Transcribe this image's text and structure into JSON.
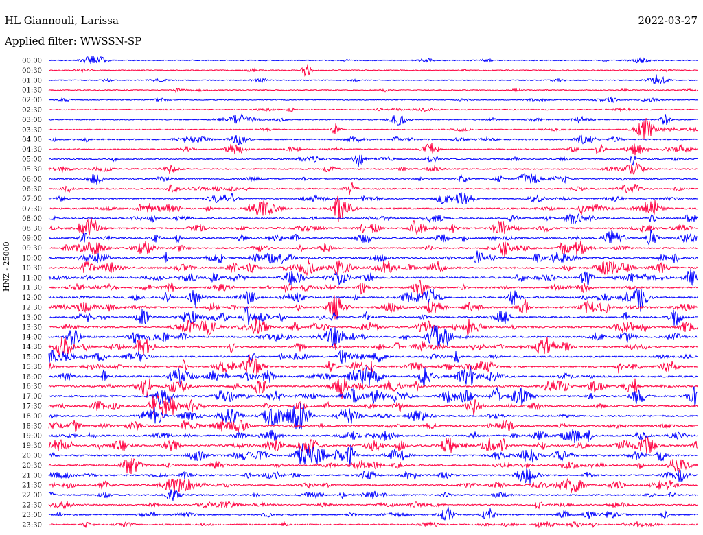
{
  "header": {
    "station": "HL Giannouli, Larissa",
    "date": "2022-03-27",
    "filter": "Applied filter: WWSSN-SP"
  },
  "chart_data": {
    "type": "line",
    "ylabel": "HNZ - 25000",
    "colors": [
      "#0000ff",
      "#ff0040"
    ],
    "rows": [
      "00:00",
      "00:30",
      "01:00",
      "01:30",
      "02:00",
      "02:30",
      "03:00",
      "03:30",
      "04:00",
      "04:30",
      "05:00",
      "05:30",
      "06:00",
      "06:30",
      "07:00",
      "07:30",
      "08:00",
      "08:30",
      "09:00",
      "09:30",
      "10:00",
      "10:30",
      "11:00",
      "11:30",
      "12:00",
      "12:30",
      "13:00",
      "13:30",
      "14:00",
      "14:30",
      "15:00",
      "15:30",
      "16:00",
      "16:30",
      "17:00",
      "17:30",
      "18:00",
      "18:30",
      "19:00",
      "19:30",
      "20:00",
      "20:30",
      "21:00",
      "21:30",
      "22:00",
      "22:30",
      "23:00",
      "23:30"
    ],
    "activity": [
      0.1,
      0.1,
      0.1,
      0.15,
      0.1,
      0.1,
      0.2,
      0.15,
      0.5,
      0.35,
      0.35,
      0.4,
      0.5,
      0.45,
      0.5,
      0.8,
      0.7,
      0.8,
      0.75,
      0.7,
      0.85,
      0.9,
      0.9,
      0.85,
      0.9,
      0.9,
      0.85,
      0.95,
      0.9,
      0.95,
      0.7,
      0.8,
      0.95,
      0.95,
      0.95,
      0.85,
      0.8,
      0.8,
      0.9,
      0.9,
      0.85,
      0.75,
      0.7,
      0.65,
      0.6,
      0.55,
      0.6,
      0.45
    ]
  }
}
